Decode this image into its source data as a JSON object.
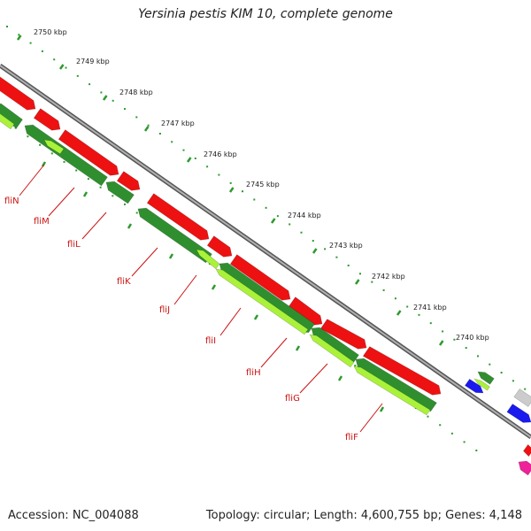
{
  "title": "Yersinia pestis KIM 10, complete genome",
  "colors": {
    "backbone": "#7a7a7a",
    "tick": "#2e9a2e",
    "forward_cds": "#ee1111",
    "reverse_dark": "#2f8f2f",
    "reverse_light": "#aaf23a",
    "label": "#cc1111",
    "other_blue": "#1a1aee",
    "other_pink": "#ee2299",
    "other_gray": "#cccccc"
  },
  "scale": {
    "unit": "kbp",
    "ticks": [
      "2750 kbp",
      "2749 kbp",
      "2748 kbp",
      "2747 kbp",
      "2746 kbp",
      "2745 kbp",
      "2744 kbp",
      "2743 kbp",
      "2742 kbp",
      "2741 kbp",
      "2740 kbp"
    ]
  },
  "genes": [
    "fliN",
    "fliM",
    "fliL",
    "fliK",
    "fliJ",
    "fliI",
    "fliH",
    "fliG",
    "fliF"
  ],
  "footer": {
    "accession": "Accession: NC_004088",
    "summary": "Topology: circular; Length: 4,600,755 bp; Genes: 4,148"
  }
}
